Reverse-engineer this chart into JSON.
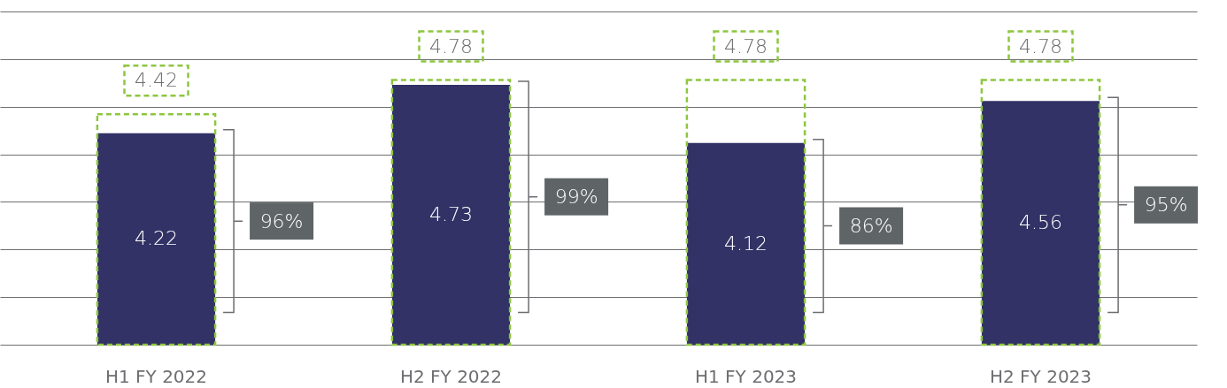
{
  "chart_data": {
    "type": "bar",
    "categories": [
      "H1 FY 2022",
      "H2 FY 2022",
      "H1 FY 2023",
      "H2 FY 2023"
    ],
    "series": [
      {
        "color": "#8dc63f",
        "values": [
          4.42,
          4.78,
          4.78,
          4.78
        ],
        "line_style": "dashed"
      },
      {
        "color": "#323266",
        "values": [
          4.22,
          4.73,
          4.12,
          4.56
        ]
      }
    ],
    "ylim": [
      2,
      5.5
    ],
    "yticks": [
      {
        "value": 2,
        "label": null
      },
      {
        "value": 2.5,
        "label": null
      },
      {
        "value": 3,
        "label": null
      },
      {
        "value": 3.5,
        "label": null
      },
      {
        "value": 4,
        "label": null
      },
      {
        "value": 4.5,
        "label": null
      },
      {
        "value": 5,
        "label": null
      },
      {
        "value": 5.5,
        "label": null
      }
    ],
    "grid": "y",
    "tick_labels": "x",
    "data_labels": true,
    "annotations": [
      "96%",
      "99%",
      "86%",
      "95%"
    ]
  }
}
